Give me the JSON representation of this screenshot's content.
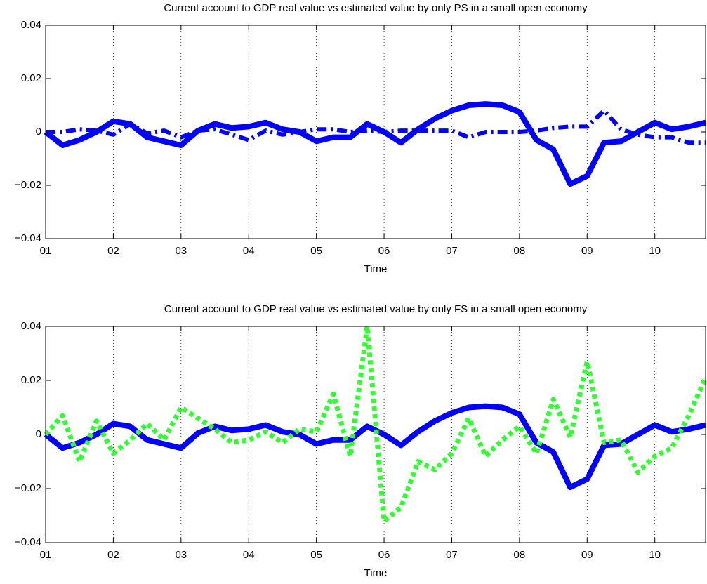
{
  "chart_data": [
    {
      "type": "line",
      "title": "Current account to GDP real value vs estimated value by only PS in a small open economy",
      "xlabel": "Time",
      "x": [
        1,
        1.25,
        1.5,
        1.75,
        2,
        2.25,
        2.5,
        2.75,
        3,
        3.25,
        3.5,
        3.75,
        4,
        4.25,
        4.5,
        4.75,
        5,
        5.25,
        5.5,
        5.75,
        6,
        6.25,
        6.5,
        6.75,
        7,
        7.25,
        7.5,
        7.75,
        8,
        8.25,
        8.5,
        8.75,
        9,
        9.25,
        9.5,
        9.75,
        10,
        10.25,
        10.5,
        10.75
      ],
      "xlim": [
        1,
        10.75
      ],
      "xticks": [
        {
          "value": 1,
          "label": "01"
        },
        {
          "value": 2,
          "label": "02"
        },
        {
          "value": 3,
          "label": "03"
        },
        {
          "value": 4,
          "label": "04"
        },
        {
          "value": 5,
          "label": "05"
        },
        {
          "value": 6,
          "label": "06"
        },
        {
          "value": 7,
          "label": "07"
        },
        {
          "value": 8,
          "label": "08"
        },
        {
          "value": 9,
          "label": "09"
        },
        {
          "value": 10,
          "label": "10"
        }
      ],
      "ylim": [
        -0.04,
        0.04
      ],
      "yticks": [
        {
          "value": -0.04,
          "label": "−0.04"
        },
        {
          "value": -0.02,
          "label": "−0.02"
        },
        0,
        0.02,
        0.04
      ],
      "grid": "x",
      "series": [
        {
          "color": "#0000ff",
          "style": "solid",
          "values": [
            0,
            -0.005,
            -0.003,
            0,
            0.004,
            0.003,
            -0.002,
            -0.0035,
            -0.005,
            0.0005,
            0.003,
            0.0015,
            0.002,
            0.0035,
            0.001,
            0,
            -0.0035,
            -0.002,
            -0.002,
            0.003,
            0,
            -0.004,
            0.001,
            0.005,
            0.008,
            0.01,
            0.0105,
            0.01,
            0.0075,
            -0.003,
            -0.0065,
            -0.0195,
            -0.0165,
            -0.004,
            -0.0035,
            0,
            0.0035,
            0.001,
            0.002,
            0.0035
          ]
        },
        {
          "color": "#0000ff",
          "style": "dashdot",
          "values": [
            0,
            0,
            0.001,
            0.0005,
            -0.001,
            0.003,
            -0.0005,
            0.0005,
            -0.002,
            0.0005,
            0.001,
            -0.001,
            -0.003,
            0.0005,
            -0.001,
            0,
            0.001,
            0.001,
            0,
            0.0005,
            0,
            0.0005,
            0.0005,
            0.0005,
            0.0005,
            -0.002,
            0,
            0,
            0,
            0.0005,
            0.0015,
            0.002,
            0.002,
            0.008,
            0.001,
            -0.001,
            -0.002,
            -0.002,
            -0.004,
            -0.004
          ]
        }
      ]
    },
    {
      "type": "line",
      "title": "Current account to GDP real value vs estimated value by only FS in a small open economy",
      "xlabel": "Time",
      "x": [
        1,
        1.25,
        1.5,
        1.75,
        2,
        2.25,
        2.5,
        2.75,
        3,
        3.25,
        3.5,
        3.75,
        4,
        4.25,
        4.5,
        4.75,
        5,
        5.25,
        5.5,
        5.75,
        6,
        6.25,
        6.5,
        6.75,
        7,
        7.25,
        7.5,
        7.75,
        8,
        8.25,
        8.5,
        8.75,
        9,
        9.25,
        9.5,
        9.75,
        10,
        10.25,
        10.5,
        10.75
      ],
      "xlim": [
        1,
        10.75
      ],
      "xticks": [
        {
          "value": 1,
          "label": "01"
        },
        {
          "value": 2,
          "label": "02"
        },
        {
          "value": 3,
          "label": "03"
        },
        {
          "value": 4,
          "label": "04"
        },
        {
          "value": 5,
          "label": "05"
        },
        {
          "value": 6,
          "label": "06"
        },
        {
          "value": 7,
          "label": "07"
        },
        {
          "value": 8,
          "label": "08"
        },
        {
          "value": 9,
          "label": "09"
        },
        {
          "value": 10,
          "label": "10"
        }
      ],
      "ylim": [
        -0.04,
        0.04
      ],
      "yticks": [
        {
          "value": -0.04,
          "label": "−0.04"
        },
        {
          "value": -0.02,
          "label": "−0.02"
        },
        0,
        0.02,
        0.04
      ],
      "grid": "x",
      "series": [
        {
          "color": "#0000ff",
          "style": "solid",
          "values": [
            0,
            -0.005,
            -0.003,
            0,
            0.004,
            0.003,
            -0.002,
            -0.0035,
            -0.005,
            0.0005,
            0.003,
            0.0015,
            0.002,
            0.0035,
            0.001,
            0,
            -0.0035,
            -0.002,
            -0.002,
            0.003,
            0,
            -0.004,
            0.001,
            0.005,
            0.008,
            0.01,
            0.0105,
            0.01,
            0.0075,
            -0.003,
            -0.0065,
            -0.0195,
            -0.0165,
            -0.004,
            -0.0035,
            0,
            0.0035,
            0.001,
            0.002,
            0.0035
          ]
        },
        {
          "color": "#33ff33",
          "style": "dotted",
          "values": [
            0,
            0.007,
            -0.01,
            0.005,
            -0.007,
            -0.002,
            0.004,
            -0.002,
            0.01,
            0.006,
            0.002,
            -0.003,
            -0.002,
            0.001,
            -0.003,
            0.002,
            0.001,
            0.015,
            -0.008,
            0.04,
            -0.032,
            -0.027,
            -0.01,
            -0.013,
            -0.007,
            0.006,
            -0.008,
            -0.002,
            0.003,
            -0.007,
            0.013,
            -0.001,
            0.027,
            -0.003,
            -0.002,
            -0.014,
            -0.008,
            -0.005,
            0.007,
            0.021
          ]
        }
      ]
    }
  ]
}
